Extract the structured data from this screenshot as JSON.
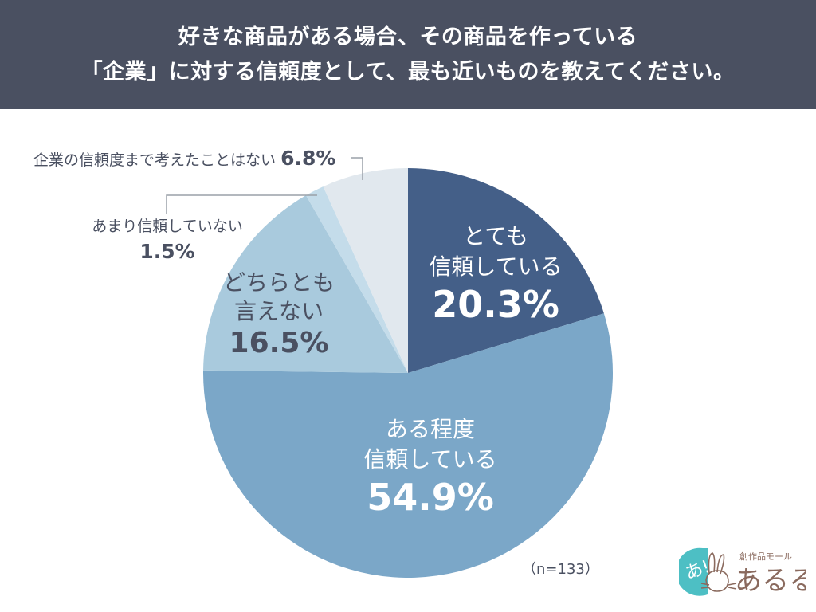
{
  "header": {
    "title_line1": "好きな商品がある場合、その商品を作っている",
    "title_line2": "「企業」に対する信頼度として、最も近いものを教えてください。"
  },
  "labels": {
    "s0_line1": "とても",
    "s0_line2": "信頼している",
    "s0_value": "20.3%",
    "s1_line1": "ある程度",
    "s1_line2": "信頼している",
    "s1_value": "54.9%",
    "s2_line1": "どちらとも",
    "s2_line2": "言えない",
    "s2_value": "16.5%",
    "s3_line1": "あまり信頼していない",
    "s3_value": "1.5%",
    "s4_line1": "企業の信頼度まで考えたことはない",
    "s4_value": "6.8%"
  },
  "sample_note": "（n=133）",
  "logo": {
    "glyph": "あ!",
    "subtitle": "創作品モール",
    "name": "あるる"
  },
  "colors": {
    "header_bg": "#4A5061",
    "slice_very_trust": "#445F88",
    "slice_somewhat_trust": "#7BA7C8",
    "slice_neither": "#A9CADD",
    "slice_not_much": "#C4DCEA",
    "slice_never_thought": "#E1E8EE",
    "text_dark": "#4A5061",
    "logo_teal": "#4DBFC4",
    "logo_brown": "#8A6A5E"
  },
  "chart_data": {
    "type": "pie",
    "title": "好きな商品がある場合、その商品を作っている「企業」に対する信頼度として、最も近いものを教えてください。",
    "categories": [
      "とても信頼している",
      "ある程度信頼している",
      "どちらとも言えない",
      "あまり信頼していない",
      "企業の信頼度まで考えたことはない"
    ],
    "values": [
      20.3,
      54.9,
      16.5,
      1.5,
      6.8
    ],
    "unit": "%",
    "colors": [
      "#445F88",
      "#7BA7C8",
      "#A9CADD",
      "#C4DCEA",
      "#E1E8EE"
    ],
    "start_angle": "12 o'clock",
    "direction": "clockwise",
    "n": 133,
    "legend": "none (direct labels)"
  }
}
